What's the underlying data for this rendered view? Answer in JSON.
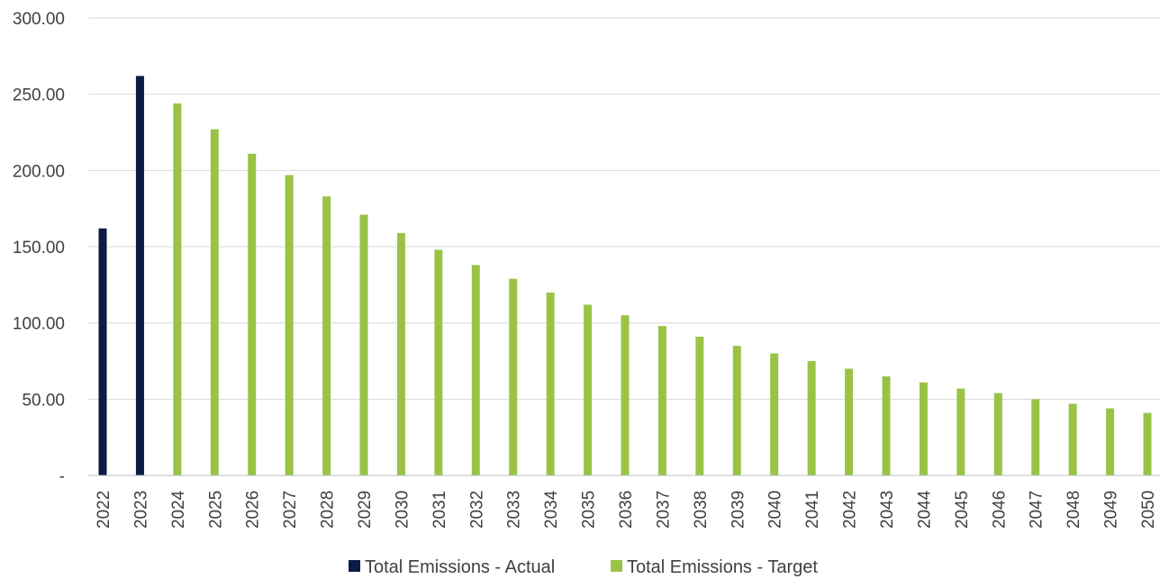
{
  "chart_data": {
    "type": "bar",
    "title": "",
    "xlabel": "",
    "ylabel": "",
    "ylim": [
      0,
      300
    ],
    "yticks": [
      {
        "value": 0,
        "label": "-"
      },
      {
        "value": 50,
        "label": "50.00"
      },
      {
        "value": 100,
        "label": "100.00"
      },
      {
        "value": 150,
        "label": "150.00"
      },
      {
        "value": 200,
        "label": "200.00"
      },
      {
        "value": 250,
        "label": "250.00"
      },
      {
        "value": 300,
        "label": "300.00"
      }
    ],
    "grid": true,
    "legend_position": "bottom",
    "categories": [
      "2022",
      "2023",
      "2024",
      "2025",
      "2026",
      "2027",
      "2028",
      "2029",
      "2030",
      "2031",
      "2032",
      "2033",
      "2034",
      "2035",
      "2036",
      "2037",
      "2038",
      "2039",
      "2040",
      "2041",
      "2042",
      "2043",
      "2044",
      "2045",
      "2046",
      "2047",
      "2048",
      "2049",
      "2050"
    ],
    "series": [
      {
        "name": "Total Emissions - Actual",
        "color": "#0d1b45",
        "values": [
          162,
          262,
          null,
          null,
          null,
          null,
          null,
          null,
          null,
          null,
          null,
          null,
          null,
          null,
          null,
          null,
          null,
          null,
          null,
          null,
          null,
          null,
          null,
          null,
          null,
          null,
          null,
          null,
          null
        ]
      },
      {
        "name": "Total Emissions - Target",
        "color": "#9ac346",
        "values": [
          null,
          null,
          244,
          227,
          211,
          197,
          183,
          171,
          159,
          148,
          138,
          129,
          120,
          112,
          105,
          98,
          91,
          85,
          80,
          75,
          70,
          65,
          61,
          57,
          54,
          50,
          47,
          44,
          41
        ]
      }
    ]
  }
}
